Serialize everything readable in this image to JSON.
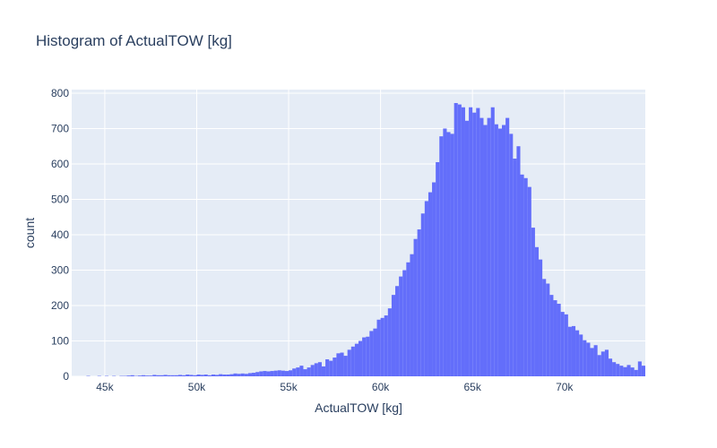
{
  "chart_data": {
    "type": "bar",
    "title": "Histogram of ActualTOW [kg]",
    "xlabel": "ActualTOW [kg]",
    "ylabel": "count",
    "xlim": [
      43200,
      74400
    ],
    "ylim": [
      0,
      810
    ],
    "bin_width": 200,
    "x_ticks": [
      45000,
      50000,
      55000,
      60000,
      65000,
      70000
    ],
    "x_tick_labels": [
      "45k",
      "50k",
      "55k",
      "60k",
      "65k",
      "70k"
    ],
    "y_ticks": [
      0,
      100,
      200,
      300,
      400,
      500,
      600,
      700,
      800
    ],
    "y_tick_labels": [
      "0",
      "100",
      "200",
      "300",
      "400",
      "500",
      "600",
      "700",
      "800"
    ],
    "grid": true,
    "legend": false,
    "colors": {
      "bar": "#636efa",
      "plot_bg": "#e5ecf6",
      "grid": "#ffffff",
      "text": "#2a3f5f"
    },
    "bins": {
      "x": [
        44100,
        44300,
        44500,
        44700,
        44900,
        45100,
        45300,
        45500,
        45700,
        45900,
        46100,
        46300,
        46500,
        46700,
        46900,
        47100,
        47300,
        47500,
        47700,
        47900,
        48100,
        48300,
        48500,
        48700,
        48900,
        49100,
        49300,
        49500,
        49700,
        49900,
        50100,
        50300,
        50500,
        50700,
        50900,
        51100,
        51300,
        51500,
        51700,
        51900,
        52100,
        52300,
        52500,
        52700,
        52900,
        53100,
        53300,
        53500,
        53700,
        53900,
        54100,
        54300,
        54500,
        54700,
        54900,
        55100,
        55300,
        55500,
        55700,
        55900,
        56100,
        56300,
        56500,
        56700,
        56900,
        57100,
        57300,
        57500,
        57700,
        57900,
        58100,
        58300,
        58500,
        58700,
        58900,
        59100,
        59300,
        59500,
        59700,
        59900,
        60100,
        60300,
        60500,
        60700,
        60900,
        61100,
        61300,
        61500,
        61700,
        61900,
        62100,
        62300,
        62500,
        62700,
        62900,
        63100,
        63300,
        63500,
        63700,
        63900,
        64100,
        64300,
        64500,
        64700,
        64900,
        65100,
        65300,
        65500,
        65700,
        65900,
        66100,
        66300,
        66500,
        66700,
        66900,
        67100,
        67300,
        67500,
        67700,
        67900,
        68100,
        68300,
        68500,
        68700,
        68900,
        69100,
        69300,
        69500,
        69700,
        69900,
        70100,
        70300,
        70500,
        70700,
        70900,
        71100,
        71300,
        71500,
        71700,
        71900,
        72100,
        72300,
        72500,
        72700,
        72900,
        73100,
        73300,
        73500,
        73700,
        73900,
        74100,
        74300
      ],
      "counts": [
        1,
        0,
        0,
        1,
        0,
        1,
        0,
        1,
        0,
        1,
        1,
        2,
        3,
        1,
        2,
        3,
        2,
        2,
        4,
        3,
        3,
        4,
        3,
        3,
        3,
        4,
        3,
        5,
        4,
        3,
        5,
        4,
        5,
        3,
        5,
        4,
        6,
        5,
        5,
        6,
        8,
        7,
        8,
        7,
        9,
        10,
        12,
        14,
        15,
        14,
        15,
        16,
        17,
        16,
        15,
        17,
        22,
        25,
        30,
        20,
        25,
        32,
        37,
        40,
        28,
        48,
        44,
        53,
        65,
        67,
        58,
        75,
        84,
        92,
        100,
        110,
        112,
        128,
        135,
        160,
        165,
        172,
        192,
        230,
        255,
        282,
        300,
        322,
        345,
        388,
        415,
        460,
        495,
        520,
        548,
        605,
        678,
        700,
        690,
        685,
        772,
        768,
        760,
        722,
        760,
        745,
        758,
        730,
        710,
        730,
        760,
        712,
        700,
        710,
        730,
        685,
        615,
        650,
        570,
        560,
        535,
        420,
        365,
        330,
        275,
        262,
        230,
        215,
        205,
        182,
        175,
        140,
        142,
        130,
        118,
        102,
        95,
        80,
        88,
        60,
        70,
        75,
        50,
        40,
        35,
        30,
        26,
        32,
        25,
        18,
        42,
        30
      ]
    }
  }
}
